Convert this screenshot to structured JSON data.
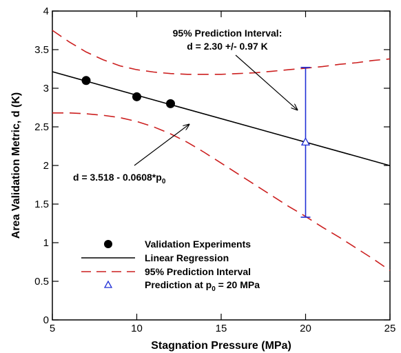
{
  "chart_data": {
    "type": "line",
    "title": "",
    "xlabel": "Stagnation Pressure (MPa)",
    "ylabel": "Area Validation Metric, d (K)",
    "xlim": [
      5,
      25
    ],
    "ylim": [
      0,
      4
    ],
    "xticks": [
      5,
      10,
      15,
      20,
      25
    ],
    "yticks": [
      0,
      0.5,
      1,
      1.5,
      2,
      2.5,
      3,
      3.5,
      4
    ],
    "xtick_labels": [
      "5",
      "10",
      "15",
      "20",
      "25"
    ],
    "ytick_labels": [
      "0",
      "0.5",
      "1",
      "1.5",
      "2",
      "2.5",
      "3",
      "3.5",
      "4"
    ],
    "grid": false,
    "legend_position": "bottom-left",
    "series": [
      {
        "name": "Validation Experiments",
        "kind": "scatter",
        "marker": "filled-circle",
        "color": "#000000",
        "x": [
          7,
          10,
          12
        ],
        "y": [
          3.1,
          2.89,
          2.8
        ]
      },
      {
        "name": "Linear Regression",
        "kind": "line",
        "color": "#000000",
        "x": [
          5,
          25
        ],
        "y": [
          3.214,
          1.998
        ]
      },
      {
        "name": "95% Prediction Interval",
        "kind": "dashed-line",
        "color": "#cc1f1f",
        "upper": {
          "x": [
            5,
            6,
            7,
            8,
            9,
            10,
            11,
            12,
            13,
            14,
            15,
            16,
            17,
            18,
            19,
            20,
            21,
            22,
            23,
            24,
            25
          ],
          "y": [
            3.75,
            3.6,
            3.47,
            3.37,
            3.29,
            3.24,
            3.21,
            3.19,
            3.18,
            3.18,
            3.18,
            3.19,
            3.2,
            3.22,
            3.24,
            3.26,
            3.28,
            3.31,
            3.33,
            3.36,
            3.38
          ]
        },
        "lower": {
          "x": [
            5,
            6,
            7,
            8,
            9,
            10,
            11,
            12,
            13,
            14,
            15,
            16,
            17,
            18,
            19,
            20,
            21,
            22,
            23,
            24,
            25
          ],
          "y": [
            2.68,
            2.68,
            2.67,
            2.65,
            2.62,
            2.57,
            2.5,
            2.41,
            2.3,
            2.17,
            2.03,
            1.89,
            1.75,
            1.61,
            1.47,
            1.34,
            1.2,
            1.07,
            0.93,
            0.79,
            0.64
          ]
        }
      },
      {
        "name": "Prediction at p0 = 20 MPa",
        "kind": "errorbar",
        "marker": "open-triangle",
        "color": "#1f2fd6",
        "x": 20,
        "y": 2.3,
        "lower": 1.33,
        "upper": 3.27
      }
    ],
    "legend": [
      {
        "label": "Validation Experiments"
      },
      {
        "label": "Linear Regression"
      },
      {
        "label": "95%  Prediction Interval"
      },
      {
        "label_prefix": "Prediction at p",
        "label_sub": "0",
        "label_suffix": " = 20 MPa"
      }
    ],
    "annotations": [
      {
        "line1": "95%  Prediction Interval:",
        "line2": "d = 2.30 +/- 0.97 K",
        "arrow_to": [
          20,
          2.72
        ]
      },
      {
        "prefix": "d = 3.518 - 0.0608*p",
        "sub": "0",
        "arrow_to": [
          13.1,
          2.55
        ]
      }
    ]
  },
  "colors": {
    "regression": "#000000",
    "interval": "#cc1f1f",
    "prediction": "#1f2fd6"
  }
}
